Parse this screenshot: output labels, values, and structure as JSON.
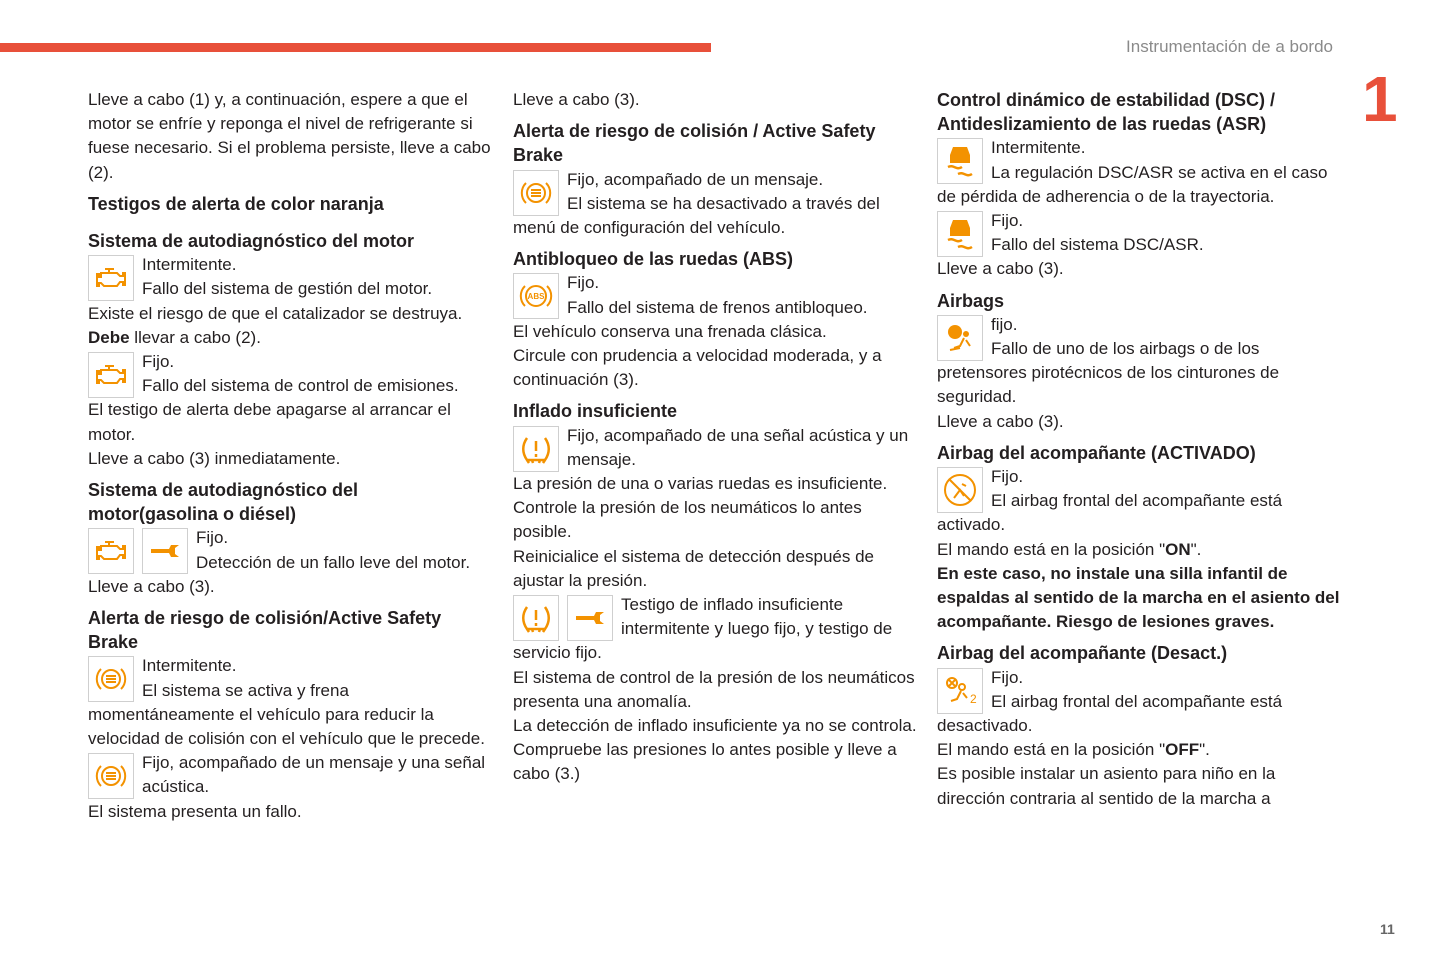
{
  "header": {
    "title": "Instrumentación de a bordo",
    "chapter": "1",
    "page": "11"
  },
  "colors": {
    "accent": "#e8503a",
    "icon": "#f39200"
  },
  "columns": [
    {
      "blocks": [
        {
          "t": "p",
          "runs": [
            {
              "x": "Lleve a cabo (1) y, a continuación, espere a que el motor se enfríe y reponga el nivel de refrigerante si fuese necesario. Si el problema persiste, lleve a cabo (2)."
            }
          ]
        },
        {
          "t": "h",
          "cls": "sec",
          "x": "Testigos de alerta de color naranja"
        },
        {
          "t": "h",
          "x": "Sistema de autodiagnóstico del motor"
        },
        {
          "t": "ic",
          "icons": [
            "engine-icon"
          ],
          "lines": [
            "Intermitente.",
            "Fallo del sistema de gestión del motor."
          ]
        },
        {
          "t": "p",
          "runs": [
            {
              "x": "Existe el riesgo de que el catalizador se destruya."
            }
          ]
        },
        {
          "t": "p",
          "runs": [
            {
              "x": "Debe",
              "b": true
            },
            {
              "x": " llevar a cabo (2)."
            }
          ]
        },
        {
          "t": "ic",
          "icons": [
            "engine-icon"
          ],
          "lines": [
            "Fijo.",
            "Fallo del sistema de control de emisiones."
          ]
        },
        {
          "t": "p",
          "runs": [
            {
              "x": "El testigo de alerta debe apagarse al arrancar el motor."
            }
          ]
        },
        {
          "t": "p",
          "runs": [
            {
              "x": "Lleve a cabo (3) inmediatamente."
            }
          ]
        },
        {
          "t": "h",
          "x": "Sistema de autodiagnóstico del motor(gasolina o diésel)"
        },
        {
          "t": "ic",
          "icons": [
            "engine-icon",
            "wrench-icon"
          ],
          "lines": [
            "Fijo.",
            "Detección de un fallo leve del motor."
          ]
        },
        {
          "t": "p",
          "runs": [
            {
              "x": "Lleve a cabo (3)."
            }
          ]
        },
        {
          "t": "h",
          "x": "Alerta de riesgo de colisión/Active Safety Brake"
        },
        {
          "t": "ic",
          "icons": [
            "collision-alert-icon"
          ],
          "lines": [
            "Intermitente.",
            "El sistema se activa y frena momentáneamente el vehículo para reducir la velocidad de colisión con el vehículo que le precede."
          ]
        },
        {
          "t": "ic",
          "icons": [
            "collision-alert-icon"
          ],
          "lines": [
            "Fijo, acompañado de un mensaje y una señal acústica."
          ]
        },
        {
          "t": "p",
          "runs": [
            {
              "x": "El sistema presenta un fallo."
            }
          ]
        }
      ]
    },
    {
      "blocks": [
        {
          "t": "p",
          "runs": [
            {
              "x": "Lleve a cabo (3)."
            }
          ]
        },
        {
          "t": "h",
          "x": "Alerta de riesgo de colisión / Active Safety Brake"
        },
        {
          "t": "ic",
          "icons": [
            "collision-alert-icon"
          ],
          "lines": [
            "Fijo, acompañado de un mensaje.",
            "El sistema se ha desactivado a través del menú de configuración del vehículo."
          ]
        },
        {
          "t": "h",
          "x": "Antibloqueo de las ruedas (ABS)"
        },
        {
          "t": "ic",
          "icons": [
            "abs-icon"
          ],
          "lines": [
            "Fijo.",
            "Fallo del sistema de frenos antibloqueo."
          ]
        },
        {
          "t": "p",
          "runs": [
            {
              "x": "El vehículo conserva una frenada clásica."
            }
          ]
        },
        {
          "t": "p",
          "runs": [
            {
              "x": "Circule con prudencia a velocidad moderada, y a continuación (3)."
            }
          ]
        },
        {
          "t": "h",
          "x": "Inflado insuficiente"
        },
        {
          "t": "ic",
          "icons": [
            "tire-pressure-icon"
          ],
          "lines": [
            "Fijo, acompañado de una señal acústica y un mensaje."
          ]
        },
        {
          "t": "p",
          "runs": [
            {
              "x": "La presión de una o varias ruedas es insuficiente."
            }
          ]
        },
        {
          "t": "p",
          "runs": [
            {
              "x": "Controle la presión de los neumáticos lo antes posible."
            }
          ]
        },
        {
          "t": "p",
          "runs": [
            {
              "x": "Reinicialice el sistema de detección después de ajustar la presión."
            }
          ]
        },
        {
          "t": "ic",
          "icons": [
            "tire-pressure-icon",
            "wrench-icon"
          ],
          "lines": [
            "Testigo de inflado insuficiente intermitente y luego fijo, y testigo de servicio fijo."
          ]
        },
        {
          "t": "p",
          "runs": [
            {
              "x": "El sistema de control de la presión de los neumáticos presenta una anomalía."
            }
          ]
        },
        {
          "t": "p",
          "runs": [
            {
              "x": "La detección de inflado insuficiente ya no se controla."
            }
          ]
        },
        {
          "t": "p",
          "runs": [
            {
              "x": "Compruebe las presiones lo antes posible y lleve a cabo (3.)"
            }
          ]
        }
      ]
    },
    {
      "blocks": [
        {
          "t": "h",
          "cls": "top",
          "x": "Control dinámico de estabilidad (DSC) / Antideslizamiento de las ruedas (ASR)"
        },
        {
          "t": "ic",
          "icons": [
            "dsc-skid-icon"
          ],
          "lines": [
            "Intermitente.",
            "La regulación DSC/ASR se activa en el caso de pérdida de adherencia o de la trayectoria."
          ]
        },
        {
          "t": "ic",
          "icons": [
            "dsc-skid-icon"
          ],
          "lines": [
            "Fijo.",
            "Fallo del sistema DSC/ASR."
          ]
        },
        {
          "t": "p",
          "runs": [
            {
              "x": "Lleve a cabo (3)."
            }
          ]
        },
        {
          "t": "h",
          "x": "Airbags"
        },
        {
          "t": "ic",
          "icons": [
            "airbag-icon"
          ],
          "lines": [
            "fijo.",
            "Fallo de uno de los airbags o de los pretensores pirotécnicos de los cinturones de seguridad."
          ]
        },
        {
          "t": "p",
          "runs": [
            {
              "x": "Lleve a cabo (3)."
            }
          ]
        },
        {
          "t": "h",
          "x": "Airbag del acompañante (ACTIVADO)"
        },
        {
          "t": "ic",
          "icons": [
            "passenger-airbag-on-icon"
          ],
          "lines": [
            "Fijo.",
            "El airbag frontal del acompañante está activado."
          ]
        },
        {
          "t": "p",
          "runs": [
            {
              "x": "El mando está en la posición \""
            },
            {
              "x": "ON",
              "b": true
            },
            {
              "x": "\"."
            }
          ]
        },
        {
          "t": "p",
          "runs": [
            {
              "x": "En este caso, no instale una silla infantil de espaldas al sentido de la marcha en el asiento del acompañante. Riesgo de lesiones graves.",
              "b": true
            }
          ]
        },
        {
          "t": "h",
          "x": "Airbag del acompañante (Desact.)"
        },
        {
          "t": "ic",
          "icons": [
            "passenger-airbag-off-icon"
          ],
          "lines": [
            "Fijo.",
            "El airbag frontal del acompañante está desactivado."
          ]
        },
        {
          "t": "p",
          "runs": [
            {
              "x": "El mando está en la posición \""
            },
            {
              "x": "OFF",
              "b": true
            },
            {
              "x": "\"."
            }
          ]
        },
        {
          "t": "p",
          "runs": [
            {
              "x": "Es posible instalar un asiento para niño en la dirección contraria al sentido de la marcha a"
            }
          ]
        }
      ]
    }
  ]
}
